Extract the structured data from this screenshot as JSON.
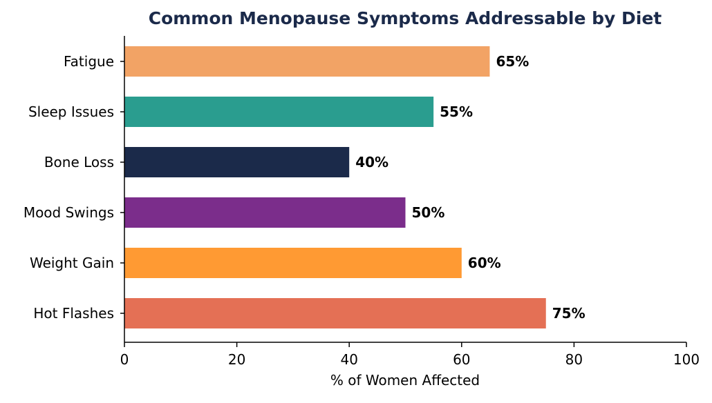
{
  "chart_data": {
    "type": "bar",
    "orientation": "horizontal",
    "title": "Common Menopause Symptoms Addressable by Diet",
    "xlabel": "% of Women Affected",
    "ylabel": "",
    "xlim": [
      0,
      100
    ],
    "x_ticks": [
      0,
      20,
      40,
      60,
      80,
      100
    ],
    "grid": false,
    "categories": [
      "Fatigue",
      "Sleep Issues",
      "Bone Loss",
      "Mood Swings",
      "Weight Gain",
      "Hot Flashes"
    ],
    "values": [
      65,
      55,
      40,
      50,
      60,
      75
    ],
    "value_labels": [
      "65%",
      "55%",
      "40%",
      "50%",
      "60%",
      "75%"
    ],
    "bar_colors": [
      "#F2A365",
      "#2A9D8F",
      "#1B2A4A",
      "#7B2D8B",
      "#FF9A33",
      "#E47055"
    ],
    "colors": {
      "title": "#1B2A4A",
      "axis": "#000000",
      "text": "#000000"
    }
  }
}
